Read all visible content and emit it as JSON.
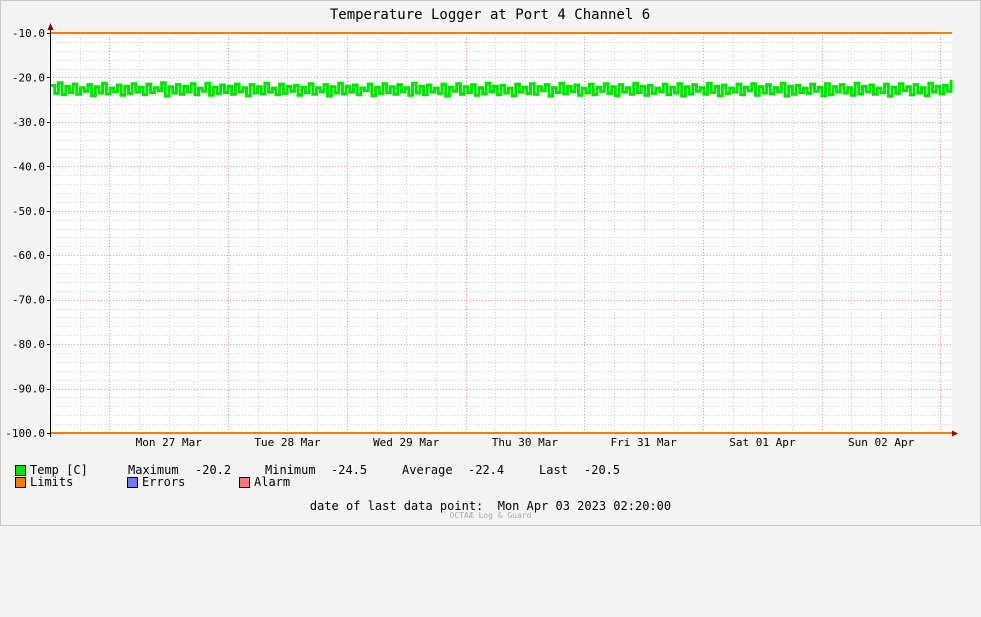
{
  "chart_data": {
    "type": "line",
    "title": "Temperature Logger at Port 4 Channel 6",
    "xlabel": "",
    "ylabel": "",
    "ylim": [
      -100,
      -10
    ],
    "y_ticks": [
      "-10.0",
      "-20.0",
      "-30.0",
      "-40.0",
      "-50.0",
      "-60.0",
      "-70.0",
      "-80.0",
      "-90.0",
      "-100.0"
    ],
    "x_tick_labels": [
      "Mon 27 Mar",
      "Tue 28 Mar",
      "Wed 29 Mar",
      "Thu 30 Mar",
      "Fri 31 Mar",
      "Sat 01 Apr",
      "Sun 02 Apr"
    ],
    "x_range": [
      "2023-03-26 12:00",
      "2023-04-03 02:20"
    ],
    "grid": true,
    "series": [
      {
        "name": "Temp [C]",
        "color": "#00e400",
        "min": -24.5,
        "max": -20.2,
        "average": -22.4,
        "last": -20.5,
        "values": [
          -21.8,
          -23.6,
          -21.2,
          -23.9,
          -22.0,
          -23.4,
          -21.5,
          -23.8,
          -22.3,
          -23.1,
          -21.6,
          -24.1,
          -22.1,
          -23.5,
          -21.3,
          -23.7,
          -22.4,
          -23.2,
          -21.7,
          -24.0,
          -22.0,
          -23.6,
          -21.4,
          -23.3,
          -22.2,
          -23.9,
          -21.5,
          -23.4,
          -22.3,
          -23.0,
          -21.2,
          -24.2,
          -22.1,
          -23.5,
          -21.6,
          -23.8,
          -22.0,
          -23.3,
          -21.4,
          -23.9,
          -22.4,
          -23.1,
          -21.3,
          -24.0,
          -22.2,
          -23.6,
          -21.7,
          -23.4,
          -22.0,
          -23.8,
          -21.5,
          -23.2,
          -22.3,
          -24.1,
          -21.6,
          -23.5,
          -22.1,
          -23.7,
          -21.3,
          -23.3,
          -22.4,
          -23.9,
          -21.5,
          -23.6,
          -22.0,
          -23.1,
          -21.8,
          -24.0,
          -22.2,
          -23.4,
          -21.4,
          -23.8,
          -22.3,
          -23.2,
          -21.6,
          -24.2,
          -22.1,
          -23.5,
          -21.3,
          -23.7,
          -22.0,
          -23.3,
          -21.7,
          -23.9,
          -22.4,
          -23.0,
          -21.5,
          -24.1,
          -22.2,
          -23.6,
          -21.4,
          -23.4,
          -22.1,
          -23.8,
          -21.6,
          -23.2,
          -22.3,
          -24.0,
          -21.3,
          -23.5,
          -22.0,
          -23.9,
          -21.7,
          -23.3,
          -22.4,
          -23.6,
          -21.5,
          -24.2,
          -22.2,
          -23.1,
          -21.4,
          -23.8,
          -22.1,
          -23.4,
          -21.6,
          -24.0,
          -22.3,
          -23.7,
          -21.3,
          -23.2,
          -22.0,
          -23.9,
          -21.8,
          -23.5,
          -22.4,
          -24.1,
          -21.5,
          -23.3,
          -22.2,
          -23.6,
          -21.4,
          -23.8,
          -22.1,
          -23.0,
          -21.6,
          -24.2,
          -22.3,
          -23.4,
          -21.3,
          -23.7,
          -22.0,
          -23.2,
          -21.7,
          -24.0,
          -22.4,
          -23.5,
          -21.5,
          -23.9,
          -22.2,
          -23.1,
          -21.4,
          -23.6,
          -22.1,
          -24.1,
          -21.6,
          -23.3,
          -22.3,
          -23.8,
          -21.3,
          -23.4,
          -22.0,
          -24.0,
          -21.8,
          -23.6,
          -22.4,
          -23.2,
          -21.5,
          -23.9,
          -22.2,
          -23.5,
          -21.4,
          -24.2,
          -22.1,
          -23.7,
          -21.6,
          -23.1,
          -22.3,
          -23.8,
          -21.3,
          -23.4,
          -22.0,
          -24.1,
          -21.7,
          -23.6,
          -22.4,
          -23.3,
          -21.5,
          -23.9,
          -22.2,
          -23.0,
          -21.4,
          -24.0,
          -22.1,
          -23.5,
          -21.6,
          -23.7,
          -22.3,
          -23.2,
          -21.3,
          -24.2,
          -22.0,
          -23.8,
          -21.8,
          -23.4,
          -22.4,
          -23.6,
          -21.5,
          -23.1,
          -22.2,
          -24.1,
          -21.4,
          -23.9,
          -22.1,
          -23.3,
          -21.6,
          -23.5,
          -22.3,
          -24.0,
          -21.3,
          -23.7,
          -22.0,
          -23.2,
          -21.7,
          -23.8,
          -22.4,
          -23.4,
          -21.5,
          -24.2,
          -22.2,
          -23.6,
          -21.4,
          -23.0,
          -22.1,
          -23.9,
          -21.6,
          -23.5,
          -22.3,
          -24.1,
          -21.3,
          -23.3,
          -22.0,
          -23.7,
          -21.8,
          -23.1,
          -20.5
        ]
      },
      {
        "name": "Limits",
        "color": "#ff7a00",
        "values": [
          -10.0,
          -100.0
        ]
      },
      {
        "name": "Errors",
        "color": "#6b7cf0",
        "values": []
      },
      {
        "name": "Alarm",
        "color": "#f47676",
        "values": []
      }
    ]
  },
  "legend": {
    "temp_label": "Temp [C]",
    "maximum_label": "Maximum",
    "maximum_value": "-20.2",
    "minimum_label": "Minimum",
    "minimum_value": "-24.5",
    "average_label": "Average",
    "average_value": "-22.4",
    "last_label": "Last",
    "last_value": "-20.5",
    "limits_label": "Limits",
    "errors_label": "Errors",
    "alarm_label": "Alarm",
    "colors": {
      "temp": "#00e400",
      "limits": "#ff7a00",
      "errors": "#6b7cf0",
      "alarm": "#f47676"
    }
  },
  "footer": {
    "date_text": "date of last data point:  Mon Apr 03 2023 02:20:00",
    "brand": "OCTAÆ Log & Guard"
  }
}
